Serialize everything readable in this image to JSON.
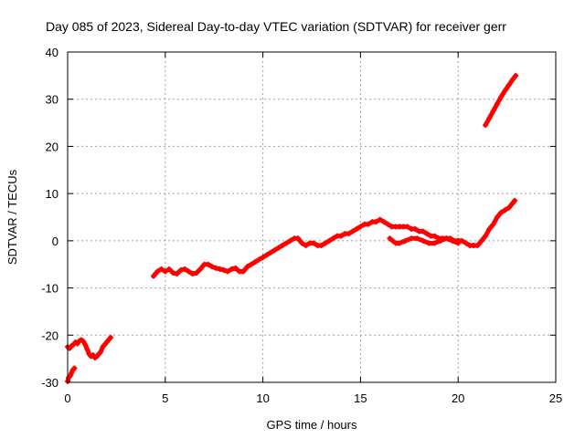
{
  "chart_data": {
    "type": "scatter",
    "title": "Day 085 of 2023, Sidereal Day-to-day VTEC variation (SDTVAR) for receiver gerr",
    "xlabel": "GPS time / hours",
    "ylabel": "SDTVAR / TECUs",
    "xlim": [
      0,
      25
    ],
    "ylim": [
      -30,
      40
    ],
    "xticks": [
      0,
      5,
      10,
      15,
      20,
      25
    ],
    "yticks": [
      -30,
      -20,
      -10,
      0,
      10,
      20,
      30,
      40
    ],
    "grid": true,
    "marker_color": "#ff0000",
    "series": [
      {
        "x": [
          0.0,
          0.05,
          0.1,
          0.15,
          0.2,
          0.25,
          0.3,
          0.35
        ],
        "y": [
          -29.8,
          -29.0,
          -28.8,
          -28.5,
          -28.0,
          -27.5,
          -27.2,
          -27.0
        ]
      },
      {
        "x": [
          0.0,
          0.1,
          0.2,
          0.3,
          0.4,
          0.5,
          0.6,
          0.7,
          0.8,
          0.9,
          1.0,
          1.1,
          1.2,
          1.3,
          1.4,
          1.5,
          1.6,
          1.7,
          1.8,
          1.9,
          2.0,
          2.1,
          2.2
        ],
        "y": [
          -22.5,
          -22.8,
          -22.3,
          -22.0,
          -21.5,
          -21.8,
          -21.2,
          -21.0,
          -21.3,
          -22.0,
          -23.0,
          -24.0,
          -24.5,
          -24.2,
          -24.8,
          -24.5,
          -24.0,
          -23.5,
          -22.5,
          -22.0,
          -21.5,
          -21.0,
          -20.5
        ]
      },
      {
        "x": [
          4.4,
          4.6,
          4.8,
          5.0,
          5.2,
          5.4,
          5.6,
          5.8,
          6.0,
          6.2,
          6.4,
          6.6,
          6.8,
          7.0,
          7.2,
          7.4,
          7.6,
          7.8,
          8.0,
          8.2,
          8.4,
          8.6,
          8.8,
          9.0,
          9.2,
          9.4,
          9.6,
          9.8,
          10.0,
          10.2,
          10.4,
          10.6,
          10.8,
          11.0,
          11.2,
          11.4,
          11.6,
          11.8,
          12.0,
          12.2,
          12.4,
          12.6,
          12.8,
          13.0,
          13.2,
          13.4,
          13.6,
          13.8,
          14.0,
          14.2,
          14.4,
          14.6,
          14.8,
          15.0,
          15.2,
          15.4,
          15.6,
          15.8,
          16.0,
          16.2,
          16.4,
          16.6,
          16.8,
          17.0,
          17.2,
          17.4,
          17.6,
          17.8,
          18.0,
          18.2,
          18.4,
          18.6,
          18.8,
          19.0,
          19.2,
          19.4,
          19.6,
          19.8,
          20.0,
          20.2,
          20.4,
          20.6,
          20.8,
          21.0,
          21.2,
          21.4,
          21.6,
          21.8,
          22.0,
          22.2,
          22.4,
          22.6,
          22.8,
          22.9
        ],
        "y": [
          -7.5,
          -6.5,
          -6.0,
          -6.5,
          -6.0,
          -6.8,
          -7.0,
          -6.2,
          -6.0,
          -6.5,
          -7.0,
          -6.8,
          -6.0,
          -5.0,
          -5.0,
          -5.5,
          -5.8,
          -6.0,
          -6.2,
          -6.5,
          -6.0,
          -5.8,
          -6.5,
          -6.5,
          -5.5,
          -5.0,
          -4.5,
          -4.0,
          -3.5,
          -3.0,
          -2.5,
          -2.0,
          -1.5,
          -1.0,
          -0.5,
          0.0,
          0.5,
          0.5,
          -0.5,
          -1.0,
          -0.5,
          -0.5,
          -1.0,
          -1.0,
          -0.5,
          0.0,
          0.5,
          1.0,
          1.0,
          1.5,
          1.5,
          2.0,
          2.5,
          3.0,
          3.5,
          3.5,
          4.0,
          4.0,
          4.5,
          4.0,
          3.5,
          3.0,
          3.0,
          3.0,
          3.0,
          3.0,
          2.5,
          2.5,
          2.0,
          2.0,
          1.5,
          1.0,
          1.0,
          0.5,
          0.5,
          0.5,
          0.5,
          0.0,
          0.0,
          0.0,
          -0.5,
          -1.0,
          -1.0,
          -1.0,
          0.0,
          1.0,
          2.5,
          3.5,
          5.0,
          6.0,
          6.5,
          7.0,
          8.0,
          8.5
        ]
      },
      {
        "x": [
          16.5,
          16.8,
          17.0,
          17.3,
          17.6,
          17.9,
          18.2,
          18.5,
          18.8,
          19.1,
          19.4,
          19.7,
          20.0
        ],
        "y": [
          0.5,
          -0.5,
          -0.5,
          0.0,
          0.5,
          0.5,
          0.0,
          -0.5,
          -0.5,
          0.0,
          0.5,
          0.0,
          -0.5
        ]
      },
      {
        "x": [
          21.4,
          21.6,
          21.8,
          22.0,
          22.2,
          22.4,
          22.6,
          22.8,
          22.95
        ],
        "y": [
          24.5,
          26.0,
          27.5,
          29.0,
          30.5,
          31.8,
          33.0,
          34.2,
          35.0
        ]
      }
    ]
  }
}
